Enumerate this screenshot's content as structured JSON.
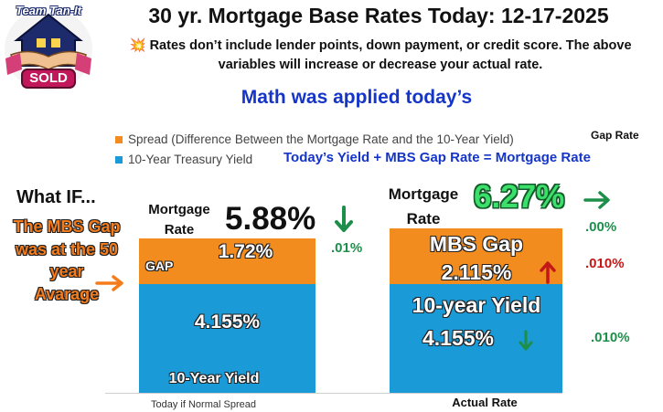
{
  "header": {
    "title": "30 yr. Mortgage Base Rates Today: 12-17-2025",
    "note_icon": "💥",
    "note": "Rates don’t include lender points, down payment, or credit score. The above variables will increase or decrease your actual rate.",
    "math_line": "Math was applied today’s",
    "logo_top_text": "Team Tan-It",
    "logo_bottom_text": "SOLD"
  },
  "legend": {
    "spread": "Spread (Difference Between the Mortgage Rate and the 10-Year Yield)",
    "treasury": "10-Year Treasury Yield"
  },
  "annotations": {
    "gap_rate_label": "Gap Rate",
    "equation": "Today’s  Yield +  MBS Gap Rate = Mortgage Rate",
    "what_if": "What IF...",
    "mbs_gap_question": [
      "The MBS Gap",
      "was at the 50",
      "year",
      "Avarage"
    ],
    "mortgage_rate_label": [
      "Mortgage",
      "Rate"
    ],
    "left_rate": "5.88%",
    "right_rate": "6.27%",
    "left_change": ".01%",
    "right_change_top": ".00%",
    "right_change_gap": ".010%",
    "right_change_yield": ".010%",
    "gap_label": "GAP",
    "left_bar_gap": "1.72%",
    "left_bar_yield": "4.155%",
    "left_bar_bottom_label": "10-Year Yield",
    "right_bar_gap_title": "MBS Gap",
    "right_bar_gap": "2.115%",
    "right_bar_yield_title": "10-year Yield",
    "right_bar_yield": "4.155%",
    "x_label_left": "Today if Normal Spread",
    "x_label_right": "Actual Rate"
  },
  "colors": {
    "spread": "#f28c1e",
    "treasury": "#1a9ad6",
    "green": "#1e8f4a",
    "red": "#c41818",
    "blue_text": "#1435c7",
    "orange_text": "#f47c1c"
  },
  "chart_data": {
    "type": "bar",
    "stacked": true,
    "categories": [
      "Today if Normal Spread",
      "Actual Rate"
    ],
    "series": [
      {
        "name": "10-Year Treasury Yield",
        "values": [
          4.155,
          4.155
        ]
      },
      {
        "name": "Spread (Difference Between the Mortgage Rate and the 10-Year Yield)",
        "values": [
          1.72,
          2.115
        ]
      }
    ],
    "totals": [
      5.88,
      6.27
    ],
    "ylim": [
      0,
      6.27
    ],
    "legend_position": "top-left",
    "grid": false
  }
}
